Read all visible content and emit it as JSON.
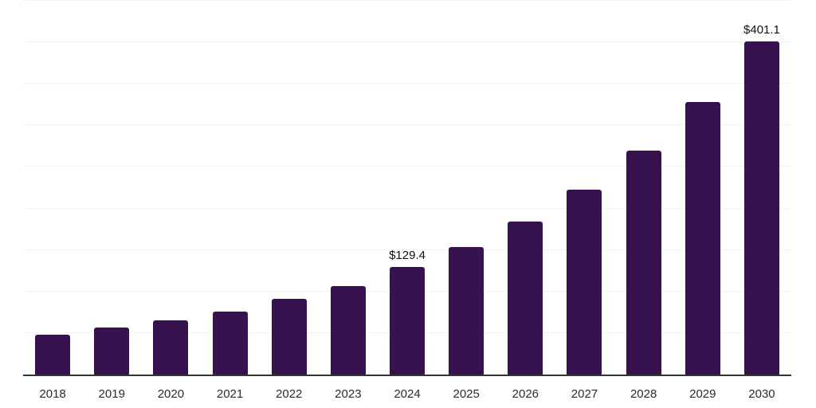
{
  "chart_data": {
    "type": "bar",
    "title": "",
    "xlabel": "",
    "ylabel": "",
    "categories": [
      "2018",
      "2019",
      "2020",
      "2021",
      "2022",
      "2023",
      "2024",
      "2025",
      "2026",
      "2027",
      "2028",
      "2029",
      "2030"
    ],
    "values": [
      48.0,
      56.6,
      65.0,
      75.8,
      90.9,
      106.9,
      129.4,
      153.5,
      184.0,
      223.0,
      269.7,
      328.0,
      401.1
    ],
    "annotations": [
      {
        "category": "2024",
        "text": "$129.4"
      },
      {
        "category": "2030",
        "text": "$401.1"
      }
    ],
    "ylim": [
      0,
      450
    ],
    "gridline_step": 50,
    "grid": "horizontal-only",
    "legend": "none",
    "y_tick_labels": "none",
    "bar_color": "#36124e",
    "axis_line_color": "#333333",
    "gridline_color": "#f2f2f2",
    "value_label_color": "#111111",
    "tick_label_color": "#2b2b2b",
    "background_color": "#ffffff"
  }
}
